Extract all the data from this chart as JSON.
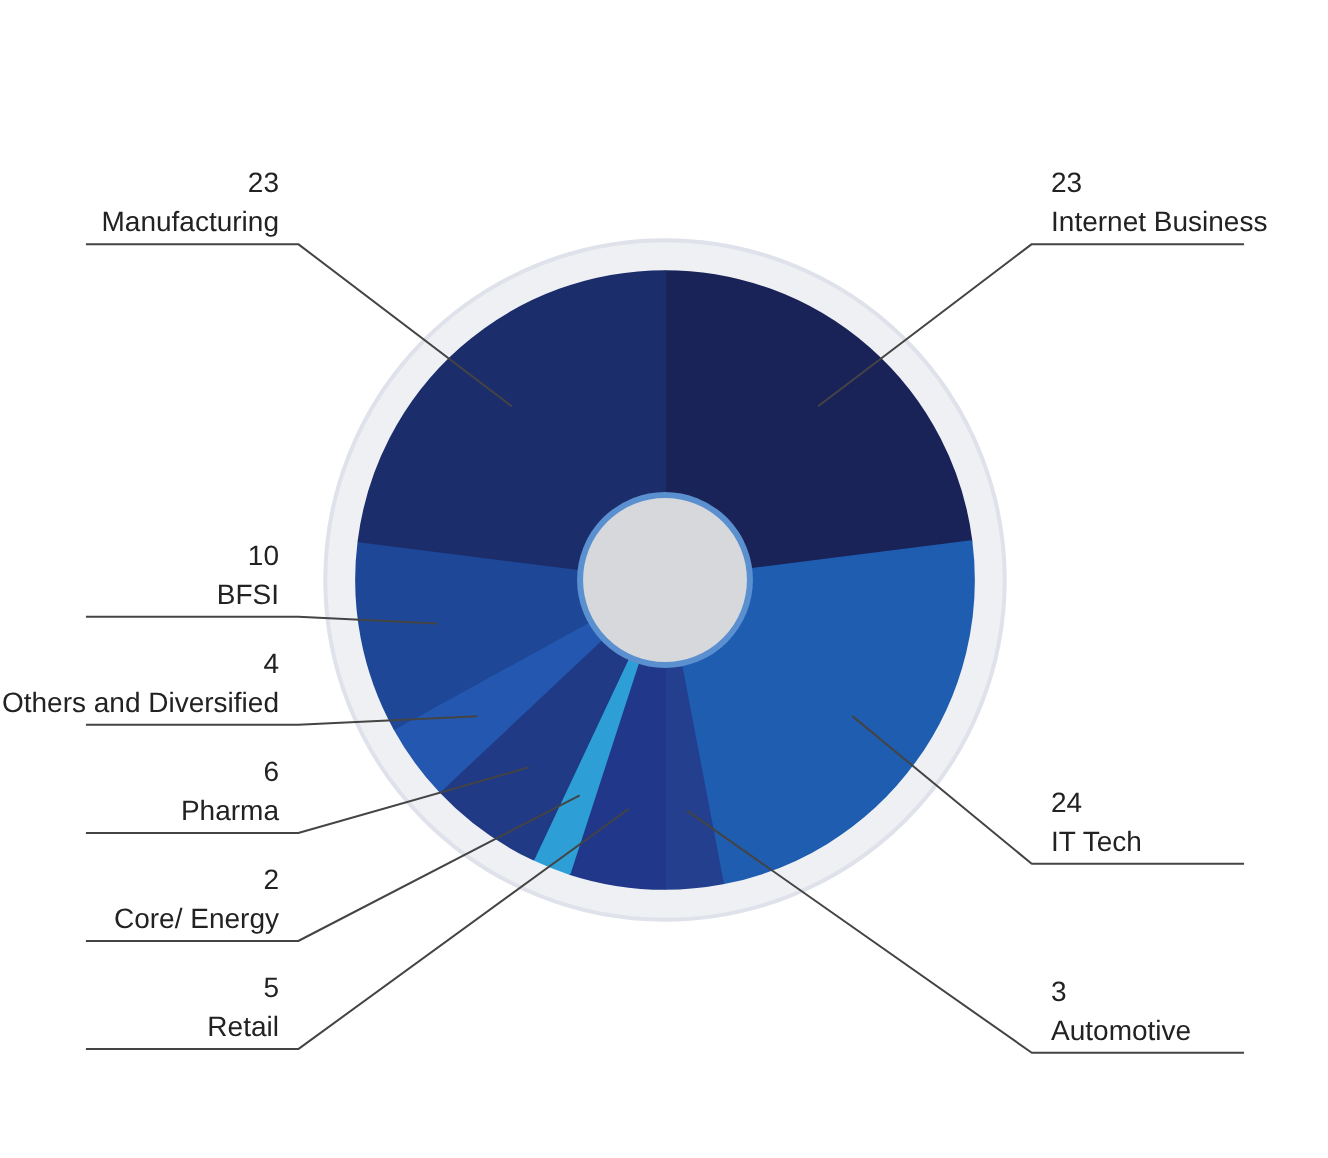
{
  "chart_data": {
    "type": "donut",
    "categories": [
      "Internet Business",
      "IT Tech",
      "Automotive",
      "Retail",
      "Core/ Energy",
      "Pharma",
      "Others and Diversified",
      "BFSI",
      "Manufacturing"
    ],
    "values": [
      23,
      24,
      3,
      5,
      2,
      6,
      4,
      10,
      23
    ],
    "colors": [
      "#1a2358",
      "#1f5db0",
      "#233f8e",
      "#21378a",
      "#2e9fd6",
      "#203a85",
      "#2458b0",
      "#1e4897",
      "#1c2d6b"
    ],
    "data_labels": true
  }
}
